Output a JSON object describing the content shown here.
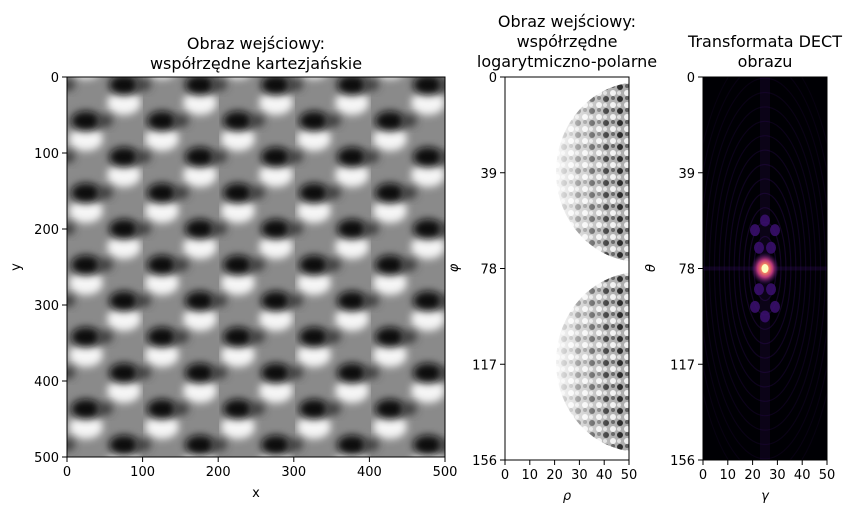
{
  "chart_data": [
    {
      "type": "heatmap",
      "title_lines": [
        "Obraz wejściowy:",
        "współrzędne kartezjańskie"
      ],
      "xlabel": "x",
      "ylabel": "y",
      "xticks": [
        "0",
        "100",
        "200",
        "300",
        "400",
        "500"
      ],
      "yticks": [
        "0",
        "100",
        "200",
        "300",
        "400",
        "500"
      ],
      "xlim": [
        0,
        500
      ],
      "ylim": [
        500,
        0
      ],
      "colormap": "gray",
      "pattern": "periodic hexagonal lattice of bright and dark blobs"
    },
    {
      "type": "heatmap",
      "title_lines": [
        "Obraz wejściowy:",
        "współrzędne",
        "logarytmiczno-polarne"
      ],
      "xlabel": "ρ",
      "ylabel": "φ",
      "xticks": [
        "0",
        "10",
        "20",
        "30",
        "40",
        "50"
      ],
      "yticks": [
        "0",
        "39",
        "78",
        "117",
        "156"
      ],
      "xlim": [
        0,
        50
      ],
      "ylim": [
        156,
        0
      ],
      "colormap": "gray",
      "pattern": "two half-disc lobes of the log-polar resampled lattice on white background"
    },
    {
      "type": "heatmap",
      "title_lines": [
        "Transformata DECT",
        "obrazu"
      ],
      "xlabel": "γ",
      "ylabel": "θ",
      "xticks": [
        "0",
        "10",
        "20",
        "30",
        "40",
        "50"
      ],
      "yticks": [
        "0",
        "39",
        "78",
        "117",
        "156"
      ],
      "xlim": [
        0,
        50
      ],
      "ylim": [
        156,
        0
      ],
      "colormap": "magma",
      "peak": {
        "x": 25,
        "y": 78
      },
      "pattern": "bright central peak with faint ripple rings on black background"
    }
  ],
  "colors": {
    "magma_dark": "#000004",
    "magma_purple": "#3b0f70",
    "magma_magenta": "#b73779",
    "magma_orange": "#fc8961",
    "magma_light": "#fcfdbf"
  }
}
